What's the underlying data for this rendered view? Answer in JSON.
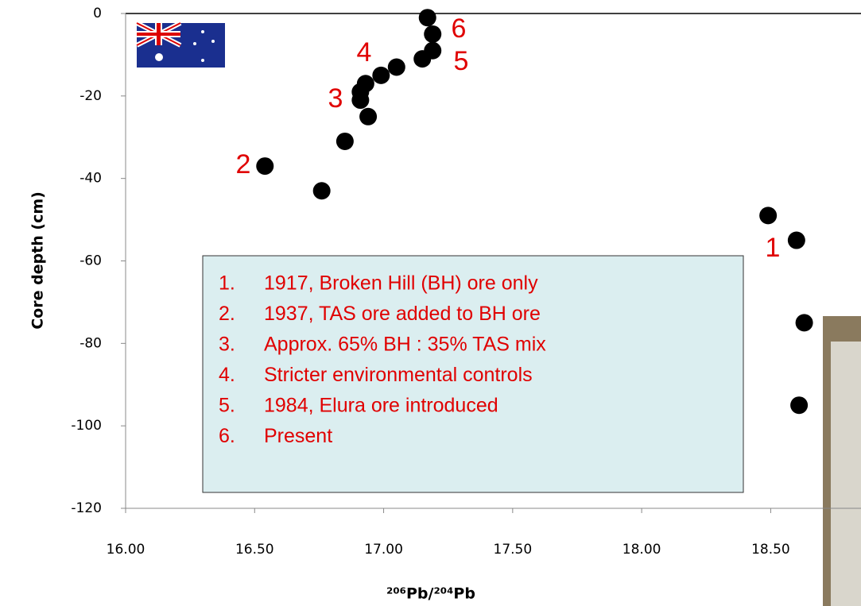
{
  "chart_data": {
    "type": "scatter",
    "xlabel": "²⁰⁶Pb/²⁰⁴Pb",
    "ylabel": "Core depth (cm)",
    "x": [
      17.17,
      17.19,
      17.19,
      17.15,
      17.05,
      16.99,
      16.93,
      16.91,
      16.91,
      16.94,
      16.85,
      16.54,
      16.76,
      18.49,
      18.6,
      18.63,
      18.61
    ],
    "values": [
      -1,
      -5,
      -9,
      -11,
      -13,
      -15,
      -17,
      -19,
      -21,
      -25,
      -31,
      -37,
      -43,
      -49,
      -55,
      -75,
      -95
    ],
    "color": "#000000",
    "xlim": [
      16,
      18.85
    ],
    "ylim": [
      -120,
      0
    ],
    "xticks": [
      {
        "value": 16,
        "label": "16.00"
      },
      {
        "value": 16.5,
        "label": "16.50"
      },
      {
        "value": 17,
        "label": "17.00"
      },
      {
        "value": 17.5,
        "label": "17.50"
      },
      {
        "value": 18,
        "label": "18.00"
      },
      {
        "value": 18.5,
        "label": "18.50"
      }
    ],
    "yticks": [
      0,
      -20,
      -40,
      -60,
      -80,
      -100,
      -120
    ],
    "annotations": [
      "1",
      "2",
      "3",
      "4",
      "5",
      "6"
    ],
    "notes": [
      {
        "number": "1.",
        "text": "1917, Broken Hill (BH) ore only"
      },
      {
        "number": "2.",
        "text": "1937, TAS ore added to BH ore"
      },
      {
        "number": "3.",
        "text": "Approx. 65% BH : 35% TAS mix"
      },
      {
        "number": "4.",
        "text": "Stricter environmental controls"
      },
      {
        "number": "5.",
        "text": "1984, Elura ore introduced"
      },
      {
        "number": "6.",
        "text": "Present"
      }
    ]
  }
}
